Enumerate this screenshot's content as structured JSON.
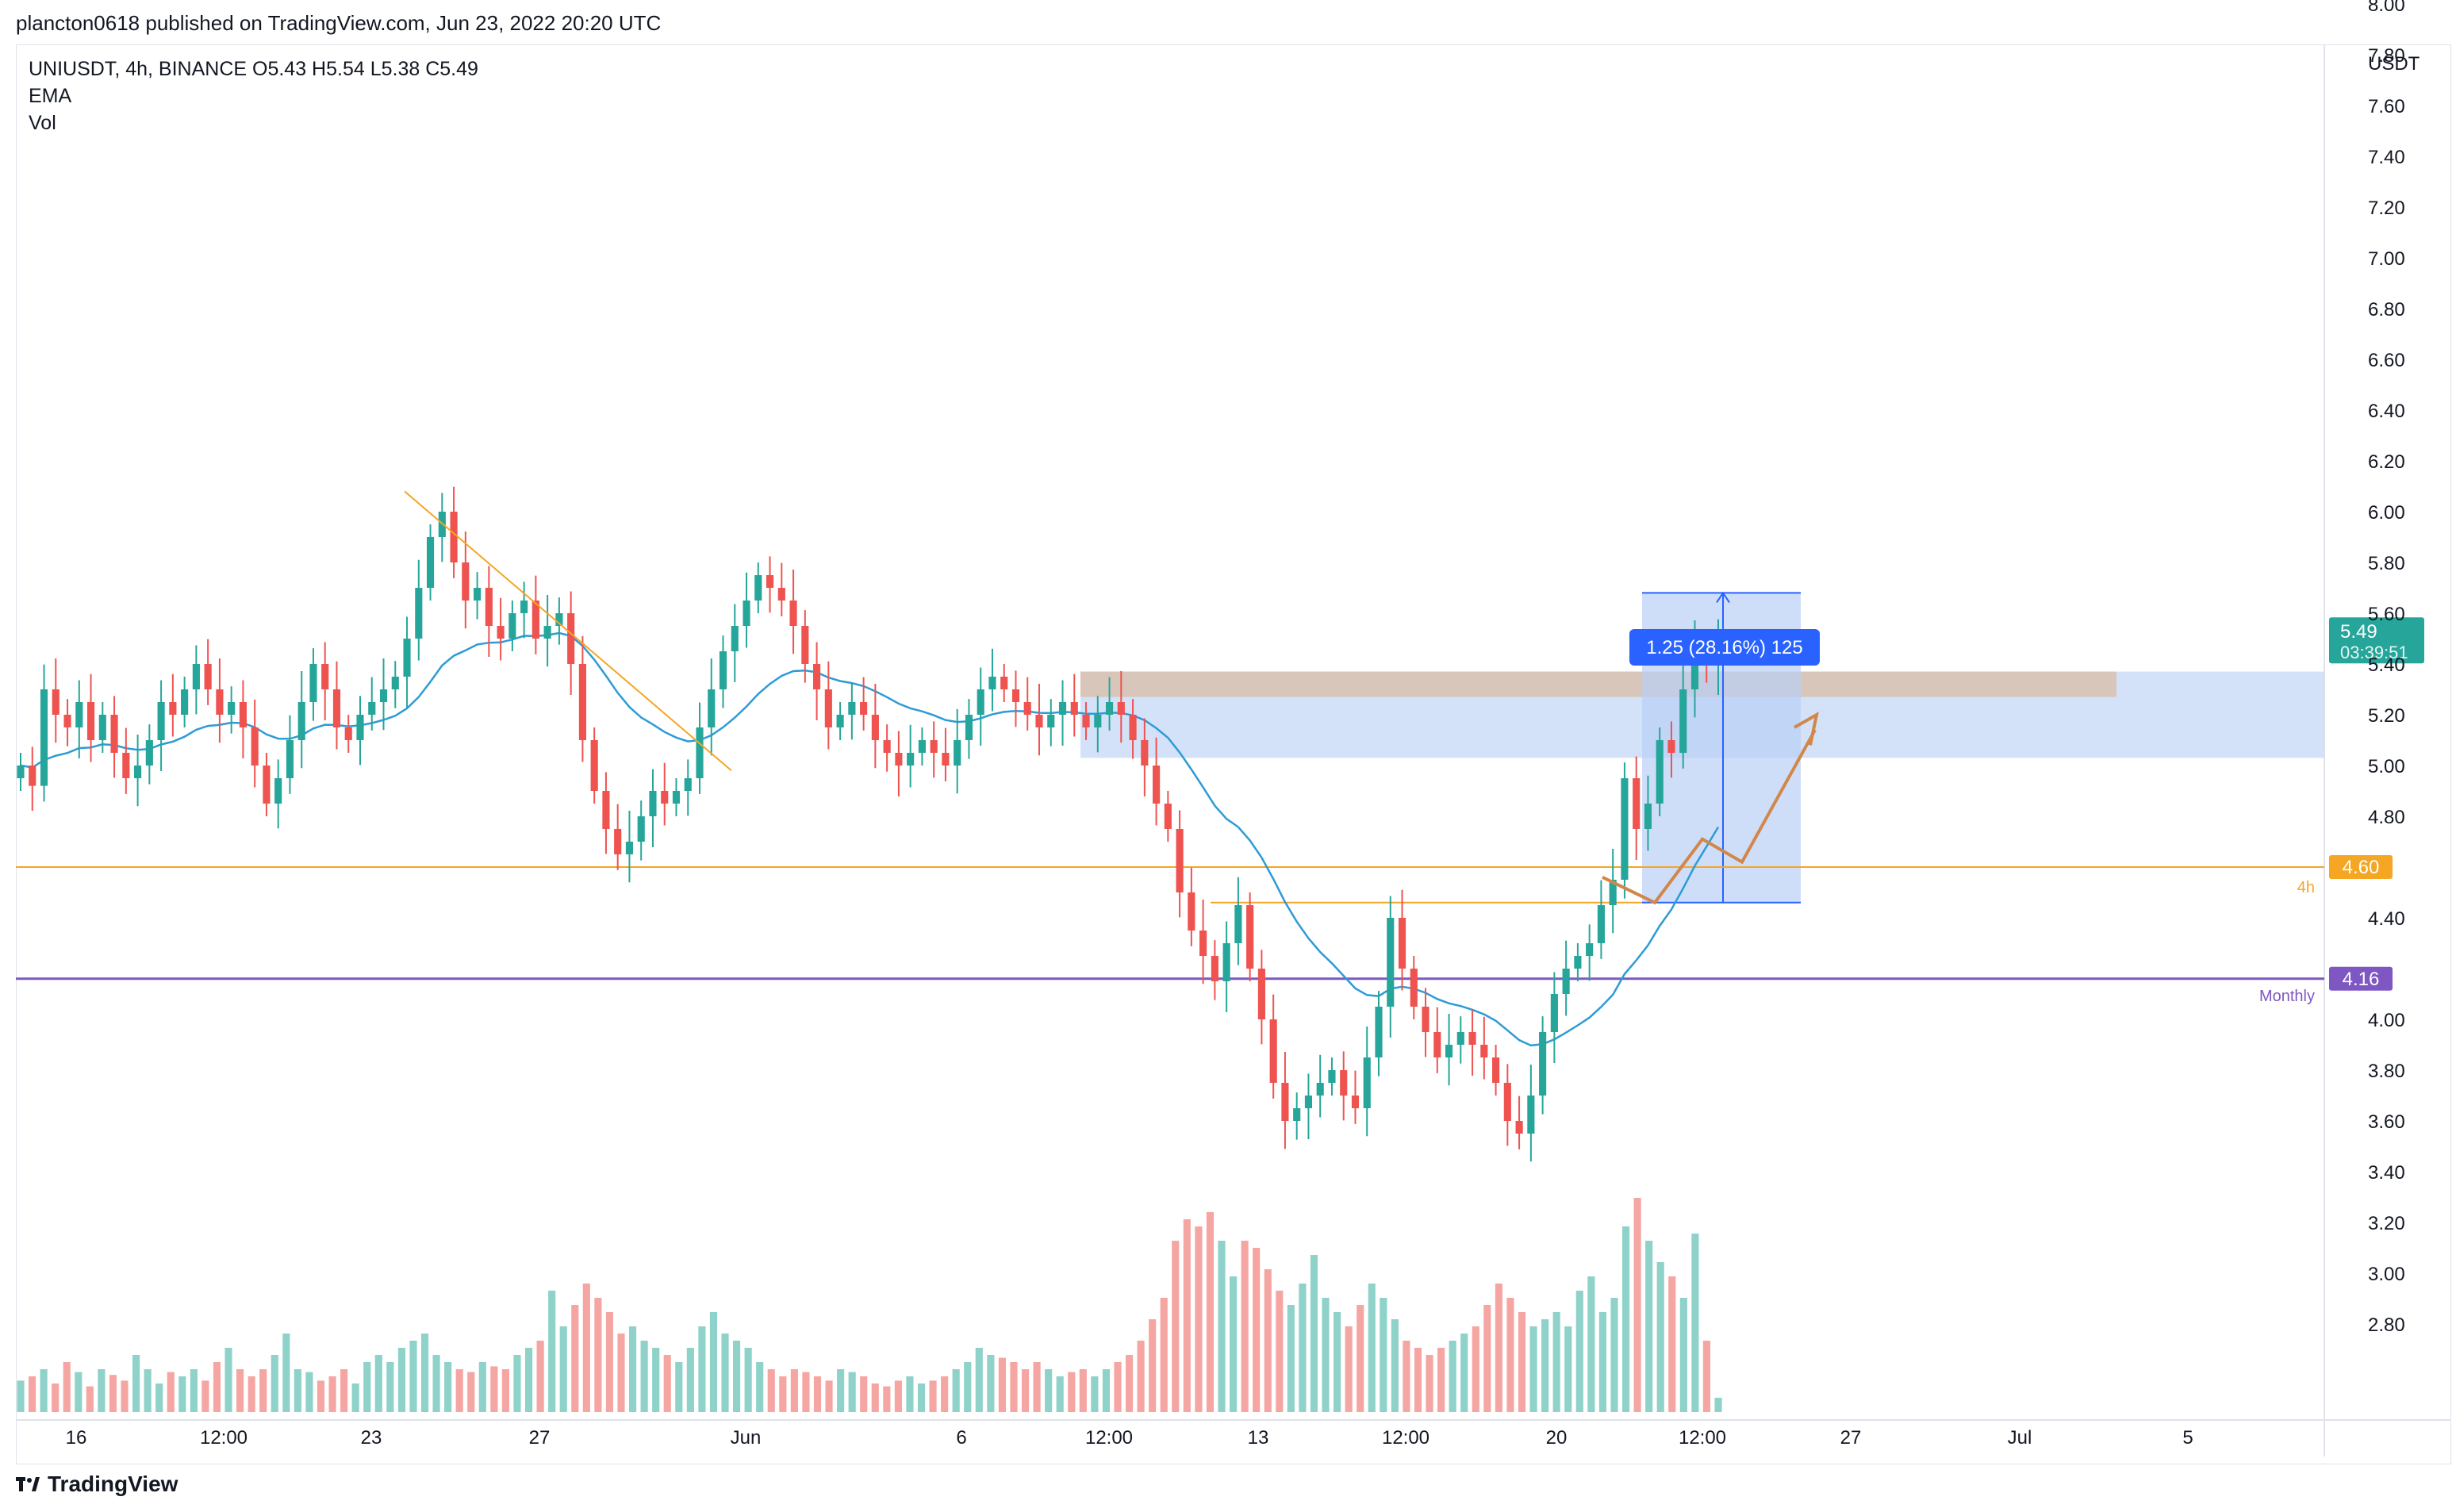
{
  "header": {
    "published_line": "plancton0618 published on TradingView.com, Jun 23, 2022 20:20 UTC"
  },
  "legend": {
    "symbol_line": "UNIUSDT, 4h, BINANCE  O5.43  H5.54  L5.38  C5.49",
    "indicator_1": "EMA",
    "indicator_2": "Vol"
  },
  "footer": {
    "brand": "TradingView",
    "logo_icon": "tradingview-logo-icon"
  },
  "colors": {
    "up": "#26a69a",
    "down": "#ef5350",
    "up_vol": "#8fd2ca",
    "down_vol": "#f5a6a3",
    "ema": "#2d9bd6",
    "orange_line": "#f5a623",
    "purple_line": "#7e57c2",
    "zone_blue": "#c4d8f5",
    "zone_brown": "#d8c3b2",
    "position_blue": "#b9d0f7",
    "price_tag": "#26a69a",
    "label_blue": "#2962ff",
    "path_brown": "#d2874a"
  },
  "chart_data": {
    "type": "candlestick",
    "symbol": "UNIUSDT",
    "interval": "4h",
    "exchange": "BINANCE",
    "ohlc_last": {
      "open": 5.43,
      "high": 5.54,
      "low": 5.38,
      "close": 5.49
    },
    "y_axis": {
      "unit": "USDT",
      "range": [
        2.8,
        8.1
      ],
      "ticks": [
        "8.00",
        "7.80",
        "7.60",
        "7.40",
        "7.20",
        "7.00",
        "6.80",
        "6.60",
        "6.40",
        "6.20",
        "6.00",
        "5.80",
        "5.60",
        "5.40",
        "5.20",
        "5.00",
        "4.80",
        "4.40",
        "4.00",
        "3.80",
        "3.60",
        "3.40",
        "3.20",
        "3.00",
        "2.80"
      ]
    },
    "x_axis": {
      "ticks": [
        "16",
        "12:00",
        "23",
        "27",
        "Jun",
        "6",
        "12:00",
        "13",
        "12:00",
        "20",
        "12:00",
        "27",
        "Jul",
        "5"
      ]
    },
    "candles_close_path": [
      5.0,
      4.92,
      5.3,
      5.2,
      5.15,
      5.25,
      5.1,
      5.2,
      5.05,
      4.95,
      5.0,
      5.1,
      5.25,
      5.2,
      5.3,
      5.4,
      5.3,
      5.2,
      5.25,
      5.15,
      5.0,
      4.85,
      4.95,
      5.1,
      5.25,
      5.4,
      5.3,
      5.15,
      5.1,
      5.2,
      5.25,
      5.3,
      5.35,
      5.5,
      5.7,
      5.9,
      6.0,
      5.8,
      5.65,
      5.7,
      5.55,
      5.5,
      5.6,
      5.65,
      5.5,
      5.55,
      5.6,
      5.4,
      5.1,
      4.9,
      4.75,
      4.65,
      4.7,
      4.8,
      4.9,
      4.85,
      4.9,
      4.95,
      5.15,
      5.3,
      5.45,
      5.55,
      5.65,
      5.75,
      5.7,
      5.65,
      5.55,
      5.4,
      5.3,
      5.15,
      5.2,
      5.25,
      5.2,
      5.1,
      5.05,
      5.0,
      5.05,
      5.1,
      5.05,
      5.0,
      5.1,
      5.2,
      5.3,
      5.35,
      5.3,
      5.25,
      5.2,
      5.15,
      5.2,
      5.25,
      5.2,
      5.15,
      5.2,
      5.25,
      5.2,
      5.1,
      5.0,
      4.85,
      4.75,
      4.5,
      4.35,
      4.25,
      4.15,
      4.3,
      4.45,
      4.2,
      4.0,
      3.75,
      3.6,
      3.65,
      3.7,
      3.75,
      3.8,
      3.7,
      3.65,
      3.85,
      4.05,
      4.4,
      4.2,
      4.05,
      3.95,
      3.85,
      3.9,
      3.95,
      3.9,
      3.85,
      3.75,
      3.6,
      3.55,
      3.7,
      3.95,
      4.1,
      4.2,
      4.25,
      4.3,
      4.45,
      4.55,
      4.95,
      4.75,
      4.85,
      5.1,
      5.05,
      5.3,
      5.45,
      5.4,
      5.49
    ],
    "volume_profile": [
      0.22,
      0.25,
      0.3,
      0.2,
      0.35,
      0.28,
      0.18,
      0.3,
      0.26,
      0.22,
      0.4,
      0.3,
      0.2,
      0.28,
      0.25,
      0.3,
      0.22,
      0.35,
      0.45,
      0.3,
      0.25,
      0.3,
      0.4,
      0.55,
      0.3,
      0.28,
      0.22,
      0.25,
      0.3,
      0.2,
      0.35,
      0.4,
      0.35,
      0.45,
      0.5,
      0.55,
      0.4,
      0.35,
      0.3,
      0.28,
      0.35,
      0.32,
      0.3,
      0.4,
      0.45,
      0.5,
      0.85,
      0.6,
      0.75,
      0.9,
      0.8,
      0.7,
      0.55,
      0.6,
      0.5,
      0.45,
      0.4,
      0.35,
      0.45,
      0.6,
      0.7,
      0.55,
      0.5,
      0.45,
      0.35,
      0.3,
      0.25,
      0.3,
      0.28,
      0.25,
      0.22,
      0.3,
      0.28,
      0.25,
      0.2,
      0.18,
      0.22,
      0.25,
      0.2,
      0.22,
      0.25,
      0.3,
      0.35,
      0.45,
      0.4,
      0.38,
      0.35,
      0.3,
      0.35,
      0.3,
      0.25,
      0.28,
      0.3,
      0.25,
      0.3,
      0.35,
      0.4,
      0.5,
      0.65,
      0.8,
      1.2,
      1.35,
      1.3,
      1.4,
      1.2,
      0.95,
      1.2,
      1.15,
      1.0,
      0.85,
      0.75,
      0.9,
      1.1,
      0.8,
      0.7,
      0.6,
      0.75,
      0.9,
      0.8,
      0.65,
      0.5,
      0.45,
      0.4,
      0.45,
      0.5,
      0.55,
      0.6,
      0.75,
      0.9,
      0.8,
      0.7,
      0.6,
      0.65,
      0.7,
      0.6,
      0.85,
      0.95,
      0.7,
      0.8,
      1.3,
      1.5,
      1.2,
      1.05,
      0.95,
      0.8,
      1.25,
      0.5,
      0.1
    ],
    "ema_label": "EMA",
    "horizontal_levels": [
      {
        "value": 4.6,
        "label": "4h",
        "tag": "4.60"
      },
      {
        "value": 4.16,
        "label": "Monthly",
        "tag": "4.16"
      }
    ],
    "last_price_tag": {
      "price": "5.49",
      "countdown": "03:39:51"
    },
    "measure_label": "1.25 (28.16%) 125",
    "zones": [
      {
        "name": "demand-supply-zone",
        "low": 5.03,
        "high": 5.37
      },
      {
        "name": "resistance-zone",
        "low": 5.27,
        "high": 5.37
      }
    ]
  }
}
